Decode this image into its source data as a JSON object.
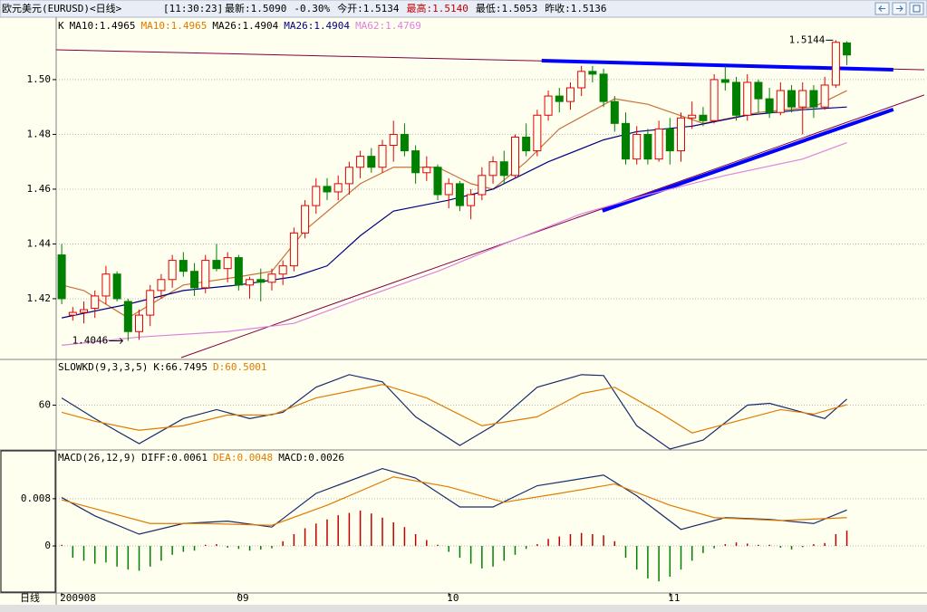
{
  "header": {
    "title": "欧元美元(EURUSD)<日线>",
    "time": "[11:30:23]",
    "items": [
      {
        "text": "最新:1.5090",
        "color": "#000000"
      },
      {
        "text": "-0.30%",
        "color": "#000000"
      },
      {
        "text": "今开:1.5134",
        "color": "#000000"
      },
      {
        "text": "最高:1.5140",
        "color": "#c00000"
      },
      {
        "text": "最低:1.5053",
        "color": "#000000"
      },
      {
        "text": "昨收:1.5136",
        "color": "#000000"
      }
    ]
  },
  "period_label": "日线",
  "chart_data": [
    {
      "type": "candlestick",
      "legend": [
        {
          "text": "K",
          "color": "#000000"
        },
        {
          "text": "MA10:1.4965",
          "color": "#000000"
        },
        {
          "text": "MA10:1.4965",
          "color": "#e07b00"
        },
        {
          "text": "MA26:1.4904",
          "color": "#000000"
        },
        {
          "text": "MA26:1.4904",
          "color": "#000080"
        },
        {
          "text": "MA62:1.4769",
          "color": "#e080e0"
        }
      ],
      "up_color": "#e00000",
      "down_color": "#008000",
      "ohlc": [
        [
          1.436,
          1.44,
          1.418,
          1.42
        ],
        [
          1.414,
          1.417,
          1.412,
          1.415
        ],
        [
          1.415,
          1.419,
          1.411,
          1.416
        ],
        [
          1.4165,
          1.423,
          1.413,
          1.421
        ],
        [
          1.421,
          1.432,
          1.418,
          1.429
        ],
        [
          1.429,
          1.43,
          1.419,
          1.42
        ],
        [
          1.419,
          1.42,
          1.4046,
          1.408
        ],
        [
          1.408,
          1.416,
          1.405,
          1.414
        ],
        [
          1.414,
          1.425,
          1.41,
          1.423
        ],
        [
          1.423,
          1.429,
          1.42,
          1.427
        ],
        [
          1.427,
          1.436,
          1.424,
          1.434
        ],
        [
          1.434,
          1.437,
          1.428,
          1.43
        ],
        [
          1.43,
          1.433,
          1.421,
          1.424
        ],
        [
          1.424,
          1.436,
          1.422,
          1.434
        ],
        [
          1.434,
          1.44,
          1.43,
          1.431
        ],
        [
          1.431,
          1.437,
          1.426,
          1.435
        ],
        [
          1.435,
          1.436,
          1.423,
          1.425
        ],
        [
          1.425,
          1.428,
          1.42,
          1.427
        ],
        [
          1.427,
          1.431,
          1.419,
          1.426
        ],
        [
          1.426,
          1.431,
          1.423,
          1.429
        ],
        [
          1.429,
          1.434,
          1.425,
          1.432
        ],
        [
          1.432,
          1.446,
          1.43,
          1.444
        ],
        [
          1.444,
          1.456,
          1.442,
          1.454
        ],
        [
          1.454,
          1.464,
          1.451,
          1.461
        ],
        [
          1.461,
          1.464,
          1.456,
          1.459
        ],
        [
          1.459,
          1.465,
          1.456,
          1.462
        ],
        [
          1.462,
          1.47,
          1.458,
          1.468
        ],
        [
          1.468,
          1.474,
          1.464,
          1.472
        ],
        [
          1.472,
          1.475,
          1.466,
          1.468
        ],
        [
          1.468,
          1.478,
          1.466,
          1.476
        ],
        [
          1.476,
          1.485,
          1.47,
          1.48
        ],
        [
          1.48,
          1.484,
          1.472,
          1.474
        ],
        [
          1.474,
          1.476,
          1.462,
          1.466
        ],
        [
          1.466,
          1.472,
          1.463,
          1.468
        ],
        [
          1.468,
          1.469,
          1.456,
          1.458
        ],
        [
          1.458,
          1.464,
          1.453,
          1.462
        ],
        [
          1.462,
          1.463,
          1.452,
          1.454
        ],
        [
          1.454,
          1.46,
          1.449,
          1.458
        ],
        [
          1.458,
          1.468,
          1.456,
          1.465
        ],
        [
          1.465,
          1.472,
          1.462,
          1.47
        ],
        [
          1.47,
          1.474,
          1.462,
          1.465
        ],
        [
          1.465,
          1.48,
          1.464,
          1.479
        ],
        [
          1.479,
          1.484,
          1.472,
          1.474
        ],
        [
          1.474,
          1.489,
          1.472,
          1.487
        ],
        [
          1.487,
          1.496,
          1.485,
          1.494
        ],
        [
          1.494,
          1.497,
          1.488,
          1.492
        ],
        [
          1.492,
          1.499,
          1.489,
          1.497
        ],
        [
          1.497,
          1.505,
          1.494,
          1.503
        ],
        [
          1.503,
          1.505,
          1.499,
          1.502
        ],
        [
          1.502,
          1.504,
          1.49,
          1.492
        ],
        [
          1.492,
          1.494,
          1.481,
          1.484
        ],
        [
          1.484,
          1.488,
          1.469,
          1.471
        ],
        [
          1.471,
          1.483,
          1.469,
          1.48
        ],
        [
          1.48,
          1.482,
          1.469,
          1.471
        ],
        [
          1.471,
          1.485,
          1.47,
          1.482
        ],
        [
          1.482,
          1.486,
          1.469,
          1.474
        ],
        [
          1.474,
          1.488,
          1.47,
          1.486
        ],
        [
          1.486,
          1.492,
          1.482,
          1.487
        ],
        [
          1.487,
          1.49,
          1.483,
          1.485
        ],
        [
          1.485,
          1.502,
          1.484,
          1.5
        ],
        [
          1.5,
          1.505,
          1.496,
          1.499
        ],
        [
          1.499,
          1.501,
          1.485,
          1.487
        ],
        [
          1.487,
          1.502,
          1.485,
          1.499
        ],
        [
          1.499,
          1.5,
          1.488,
          1.493
        ],
        [
          1.493,
          1.497,
          1.486,
          1.488
        ],
        [
          1.488,
          1.499,
          1.487,
          1.496
        ],
        [
          1.496,
          1.498,
          1.488,
          1.49
        ],
        [
          1.49,
          1.499,
          1.48,
          1.496
        ],
        [
          1.496,
          1.498,
          1.486,
          1.49
        ],
        [
          1.49,
          1.501,
          1.489,
          1.498
        ],
        [
          1.498,
          1.5144,
          1.497,
          1.5136
        ],
        [
          1.5134,
          1.514,
          1.5053,
          1.509
        ]
      ],
      "series": [
        {
          "color": "#c8703a",
          "x": [
            0,
            2,
            6,
            11,
            16,
            19,
            22,
            27,
            30,
            34,
            37,
            39,
            42,
            45,
            50,
            53,
            58,
            63,
            68,
            71
          ],
          "values": [
            1.425,
            1.423,
            1.413,
            1.425,
            1.428,
            1.43,
            1.445,
            1.462,
            1.468,
            1.468,
            1.462,
            1.46,
            1.47,
            1.482,
            1.493,
            1.491,
            1.484,
            1.488,
            1.49,
            1.496
          ]
        },
        {
          "color": "#000080",
          "x": [
            0,
            6,
            11,
            16,
            21,
            24,
            27,
            30,
            35,
            39,
            44,
            49,
            52,
            57,
            62,
            67,
            71
          ],
          "values": [
            1.413,
            1.418,
            1.423,
            1.425,
            1.428,
            1.432,
            1.443,
            1.452,
            1.456,
            1.46,
            1.47,
            1.478,
            1.481,
            1.483,
            1.487,
            1.489,
            1.49
          ]
        },
        {
          "color": "#e080e0",
          "x": [
            0,
            7,
            15,
            21,
            27,
            34,
            40,
            47,
            53,
            60,
            67,
            71
          ],
          "values": [
            1.403,
            1.406,
            1.408,
            1.411,
            1.42,
            1.43,
            1.44,
            1.451,
            1.458,
            1.465,
            1.471,
            1.477
          ]
        }
      ],
      "trendlines": [
        {
          "color": "#800040",
          "width": 1,
          "x": [
            -0.5,
            78
          ],
          "values": [
            1.5109,
            1.5036
          ]
        },
        {
          "color": "#800040",
          "width": 1,
          "x": [
            10.8,
            78
          ],
          "values": [
            1.3985,
            1.4944
          ]
        },
        {
          "color": "#0000ff",
          "width": 4,
          "x": [
            43.4,
            75.2
          ],
          "values": [
            1.5069,
            1.5036
          ]
        },
        {
          "color": "#0000ff",
          "width": 4,
          "x": [
            48.9,
            75.2
          ],
          "values": [
            1.4521,
            1.4891
          ]
        }
      ],
      "high_label": "1.5144",
      "low_label": "1.4046",
      "xlim": [
        -0.5,
        78
      ],
      "ylim": [
        1.3985,
        1.5208
      ],
      "yticks": [
        1.42,
        1.44,
        1.46,
        1.48,
        {
          "value": 1.5,
          "label": "1.50"
        }
      ],
      "grid": true
    },
    {
      "type": "line",
      "legend": [
        {
          "text": "SLOWKD(9,3,3,5)",
          "color": "#000000"
        },
        {
          "text": "K:66.7495",
          "color": "#000000"
        },
        {
          "text": "D:60.5001",
          "color": "#e07b00"
        }
      ],
      "series": [
        {
          "color": "#1a2a6c",
          "x": [
            0,
            3,
            7,
            11,
            14,
            17,
            20,
            23,
            26,
            29,
            32,
            36,
            39,
            43,
            47,
            49,
            52,
            55,
            58,
            62,
            64,
            67,
            69,
            71
          ],
          "values": [
            68,
            45,
            17,
            45,
            55,
            45,
            52,
            80,
            94,
            86,
            47,
            15,
            37,
            80,
            94,
            93,
            37,
            11,
            21,
            60,
            62,
            52,
            45,
            66.7495
          ]
        },
        {
          "color": "#e07b00",
          "x": [
            0,
            3,
            7,
            11,
            15,
            19,
            23,
            29,
            33,
            38,
            43,
            47,
            50,
            54,
            57,
            61,
            65,
            68,
            71
          ],
          "values": [
            52,
            42,
            32,
            37,
            49,
            49,
            68,
            83,
            68,
            37,
            47,
            73,
            80,
            52,
            29,
            42,
            55,
            50,
            60.5001
          ]
        }
      ],
      "xlim": [
        -0.5,
        78
      ],
      "ylim": [
        10,
        110
      ],
      "yticks": [
        60
      ],
      "grid": true
    },
    {
      "type": "combo",
      "legend": [
        {
          "text": "MACD(26,12,9)",
          "color": "#000000"
        },
        {
          "text": "DIFF:0.0061",
          "color": "#000000"
        },
        {
          "text": "DEA:0.0048",
          "color": "#e07b00"
        },
        {
          "text": "MACD:0.0026",
          "color": "#000000"
        }
      ],
      "bars": {
        "up_color": "#c00000",
        "down_color": "#008000",
        "values": [
          0.0002,
          -0.002,
          -0.0025,
          -0.003,
          -0.0028,
          -0.0035,
          -0.004,
          -0.0042,
          -0.0035,
          -0.0025,
          -0.0015,
          -0.001,
          -0.0008,
          0.0002,
          0.0003,
          -0.0003,
          -0.0005,
          -0.0008,
          -0.0006,
          -0.0004,
          0.0008,
          0.002,
          0.003,
          0.0038,
          0.0045,
          0.0052,
          0.0056,
          0.006,
          0.0055,
          0.0048,
          0.004,
          0.0032,
          0.002,
          0.001,
          0.0002,
          -0.001,
          -0.002,
          -0.003,
          -0.0038,
          -0.0035,
          -0.0025,
          -0.0015,
          -0.0005,
          0.0003,
          0.0012,
          0.0016,
          0.002,
          0.0022,
          0.002,
          0.0018,
          0.0008,
          -0.002,
          -0.004,
          -0.0055,
          -0.006,
          -0.0052,
          -0.004,
          -0.0025,
          -0.0012,
          -0.0004,
          0.0003,
          0.0006,
          0.0004,
          0.0002,
          0.0002,
          -0.0003,
          -0.0006,
          -0.0002,
          0.0003,
          0.0005,
          0.002,
          0.0026
        ]
      },
      "series": [
        {
          "color": "#1a2a6c",
          "x": [
            0,
            3,
            7,
            11,
            15,
            19,
            23,
            29,
            32,
            36,
            39,
            43,
            49,
            52,
            56,
            60,
            64,
            68,
            71
          ],
          "values": [
            0.0082,
            0.0051,
            0.002,
            0.0038,
            0.0042,
            0.0032,
            0.0089,
            0.0131,
            0.0115,
            0.0066,
            0.0066,
            0.0102,
            0.012,
            0.0085,
            0.0028,
            0.0048,
            0.0045,
            0.0038,
            0.0061
          ]
        },
        {
          "color": "#e07b00",
          "x": [
            0,
            4,
            8,
            13,
            19,
            24,
            30,
            35,
            40,
            45,
            50,
            55,
            59,
            65,
            71
          ],
          "values": [
            0.0078,
            0.0058,
            0.0038,
            0.0038,
            0.0035,
            0.0069,
            0.0117,
            0.01,
            0.0074,
            0.0089,
            0.0105,
            0.0069,
            0.0048,
            0.0043,
            0.0048
          ]
        }
      ],
      "xlim": [
        -0.5,
        78
      ],
      "ylim": [
        -0.0072,
        0.0158
      ],
      "yticks": [
        0,
        0.008
      ],
      "grid": true,
      "xticks": [
        {
          "value": 0,
          "label": "200908"
        },
        {
          "value": 16,
          "label": "09"
        },
        {
          "value": 35,
          "label": "10"
        },
        {
          "value": 55,
          "label": "11"
        }
      ]
    }
  ]
}
